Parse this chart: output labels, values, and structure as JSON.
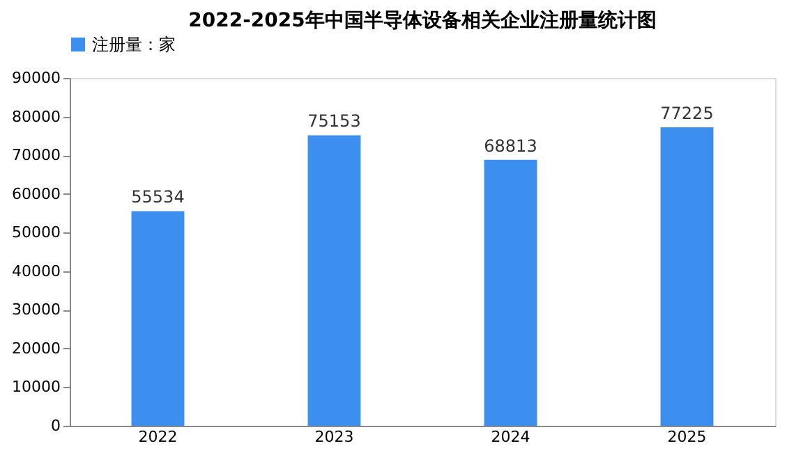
{
  "chart_data": {
    "type": "bar",
    "title": "2022-2025年中国半导体设备相关企业注册量统计图",
    "categories": [
      "2022",
      "2023",
      "2024",
      "2025"
    ],
    "series": [
      {
        "name": "注册量：家",
        "color": "#3d8fef",
        "values": [
          55534,
          75153,
          68813,
          77225
        ]
      }
    ],
    "ylim": [
      0,
      90000
    ],
    "yticks": [
      0,
      10000,
      20000,
      30000,
      40000,
      50000,
      60000,
      70000,
      80000,
      90000
    ],
    "data_labels": true,
    "grid": false,
    "legend": "top"
  }
}
